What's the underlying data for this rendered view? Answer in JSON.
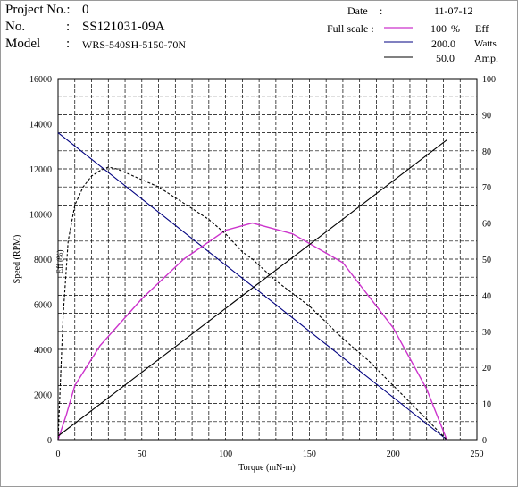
{
  "header": {
    "project_label": "Project No.:",
    "project_value": "0",
    "no_label": "No.",
    "no_colon": ":",
    "no_value": "SS121031-09A",
    "model_label": "Model",
    "model_colon": ":",
    "model_value": "WRS-540SH-5150-70N",
    "date_label": "Date",
    "date_colon": ":",
    "date_value": "11-07-12",
    "full_scale_label": "Full scale :",
    "legend": [
      {
        "value": "100",
        "unit_sign": "%",
        "name": "Eff",
        "color": "#cc33cc"
      },
      {
        "value": "200.0",
        "unit_sign": "",
        "name": "Watts",
        "color": "#000080"
      },
      {
        "value": "50.0",
        "unit_sign": "",
        "name": "Amp.",
        "color": "#000000"
      }
    ]
  },
  "chart_data": {
    "type": "line",
    "xlabel": "Torque (mN-m)",
    "ylabel": "Speed (RPM)",
    "efficiency_label": "Eff (%)",
    "xlim": [
      0,
      250
    ],
    "ylim_left": [
      0,
      16000
    ],
    "ylim_right": [
      0,
      100
    ],
    "x_ticks": [
      0,
      50,
      100,
      150,
      200,
      250
    ],
    "y_ticks_left": [
      0,
      2000,
      4000,
      6000,
      8000,
      10000,
      12000,
      14000,
      16000
    ],
    "y_ticks_right": [
      0,
      10,
      20,
      30,
      40,
      50,
      60,
      70,
      80,
      90,
      100
    ],
    "grid": true,
    "series": [
      {
        "name": "Speed",
        "axis": "left",
        "style": "solid",
        "color": "#000080",
        "x": [
          0,
          232
        ],
        "y": [
          13600,
          0
        ]
      },
      {
        "name": "Eff",
        "axis": "right",
        "style": "solid",
        "color": "#cc33cc",
        "x": [
          0,
          5,
          10,
          25,
          50,
          75,
          100,
          116,
          140,
          170,
          200,
          220,
          232
        ],
        "y": [
          0,
          7,
          15,
          26,
          39,
          50,
          58,
          60,
          57,
          49,
          31,
          14,
          0
        ]
      },
      {
        "name": "Amp.",
        "axis": "right",
        "style": "solid",
        "color": "#000000",
        "x": [
          0,
          232
        ],
        "y": [
          1,
          83
        ]
      },
      {
        "name": "Watts",
        "axis": "right",
        "style": "dashed",
        "color": "#000000",
        "x": [
          0,
          3,
          6,
          10,
          15,
          20,
          25,
          30,
          35,
          40,
          50,
          60,
          70,
          80,
          90,
          100,
          110,
          116,
          130,
          150,
          170,
          185,
          200,
          215,
          232
        ],
        "y": [
          0,
          34,
          55,
          65,
          70,
          73,
          74.5,
          75.5,
          75,
          74,
          72,
          70,
          67,
          64,
          61,
          57,
          52,
          50,
          44,
          37,
          28,
          22,
          15,
          8,
          0
        ]
      }
    ]
  }
}
